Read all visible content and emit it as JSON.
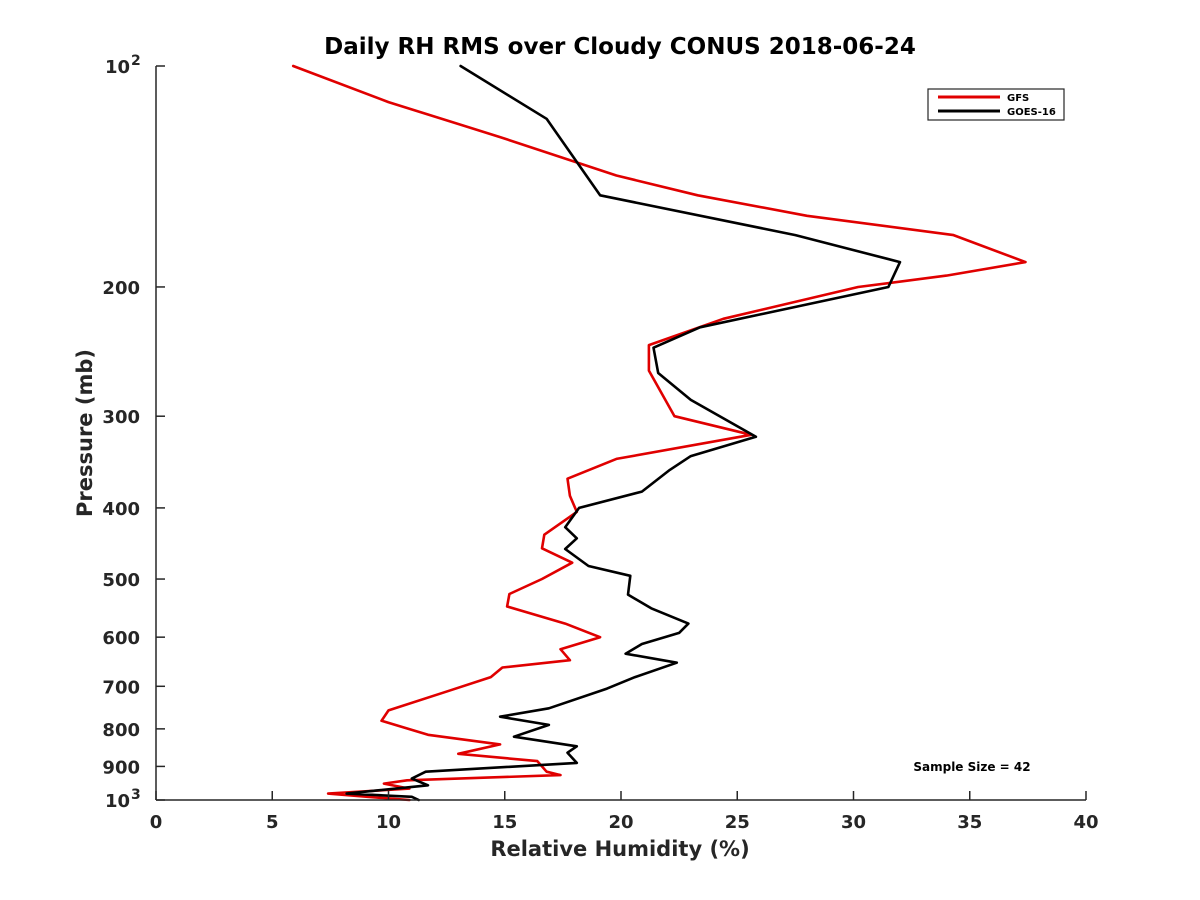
{
  "chart_data": {
    "type": "line",
    "title": "Daily RH RMS over Cloudy CONUS 2018-06-24",
    "xlabel": "Relative Humidity (%)",
    "ylabel": "Pressure (mb)",
    "xlim": [
      0,
      40
    ],
    "ylim": [
      100,
      1000
    ],
    "y_scale": "log",
    "y_reversed": true,
    "x_ticks": [
      0,
      5,
      10,
      15,
      20,
      25,
      30,
      35,
      40
    ],
    "x_tick_labels": [
      "0",
      "5",
      "10",
      "15",
      "20",
      "25",
      "30",
      "35",
      "40"
    ],
    "y_ticks": [
      100,
      200,
      300,
      400,
      500,
      600,
      700,
      800,
      900,
      1000
    ],
    "y_tick_labels": [
      {
        "base": "10",
        "exp": "2"
      },
      {
        "base": "200",
        "exp": ""
      },
      {
        "base": "300",
        "exp": ""
      },
      {
        "base": "400",
        "exp": ""
      },
      {
        "base": "500",
        "exp": ""
      },
      {
        "base": "600",
        "exp": ""
      },
      {
        "base": "700",
        "exp": ""
      },
      {
        "base": "800",
        "exp": ""
      },
      {
        "base": "900",
        "exp": ""
      },
      {
        "base": "10",
        "exp": "3"
      }
    ],
    "grid": false,
    "legend_position": "top-right",
    "annotation": "Sample Size = 42",
    "series": [
      {
        "name": "GFS",
        "color": "#e00000",
        "points": [
          [
            5.9,
            100
          ],
          [
            10,
            112
          ],
          [
            14.8,
            125
          ],
          [
            19.8,
            141
          ],
          [
            23.3,
            150
          ],
          [
            28,
            160
          ],
          [
            34.3,
            170
          ],
          [
            37.4,
            185
          ],
          [
            34,
            193
          ],
          [
            30.2,
            200
          ],
          [
            24.4,
            221
          ],
          [
            21.2,
            240
          ],
          [
            21.2,
            260
          ],
          [
            22.3,
            300
          ],
          [
            25.6,
            318
          ],
          [
            19.8,
            343
          ],
          [
            17.7,
            365
          ],
          [
            17.8,
            385
          ],
          [
            18.1,
            405
          ],
          [
            16.7,
            435
          ],
          [
            16.6,
            454
          ],
          [
            17.9,
            475
          ],
          [
            16.6,
            500
          ],
          [
            15.2,
            524
          ],
          [
            15.1,
            545
          ],
          [
            17.6,
            575
          ],
          [
            19.1,
            600
          ],
          [
            17.4,
            623
          ],
          [
            17.8,
            645
          ],
          [
            14.9,
            660
          ],
          [
            14.4,
            680
          ],
          [
            12.6,
            710
          ],
          [
            10,
            755
          ],
          [
            9.7,
            780
          ],
          [
            11.7,
            815
          ],
          [
            14.8,
            840
          ],
          [
            13,
            865
          ],
          [
            16.4,
            885
          ],
          [
            16.8,
            915
          ],
          [
            17.4,
            925
          ],
          [
            10.8,
            940
          ],
          [
            9.8,
            950
          ],
          [
            10.9,
            965
          ],
          [
            7.4,
            980
          ],
          [
            9.1,
            990
          ],
          [
            10.9,
            1000
          ]
        ]
      },
      {
        "name": "GOES-16",
        "color": "#000000",
        "points": [
          [
            13.1,
            100
          ],
          [
            16.8,
            118
          ],
          [
            19.1,
            150
          ],
          [
            27.5,
            170
          ],
          [
            32,
            185
          ],
          [
            31.5,
            200
          ],
          [
            23.4,
            227
          ],
          [
            21.4,
            242
          ],
          [
            21.6,
            262
          ],
          [
            23,
            285
          ],
          [
            25.8,
            320
          ],
          [
            23,
            340
          ],
          [
            22.1,
            355
          ],
          [
            20.9,
            380
          ],
          [
            18.2,
            400
          ],
          [
            17.6,
            425
          ],
          [
            18.1,
            440
          ],
          [
            17.6,
            455
          ],
          [
            18.6,
            480
          ],
          [
            20.4,
            495
          ],
          [
            20.3,
            525
          ],
          [
            21.3,
            548
          ],
          [
            22.9,
            575
          ],
          [
            22.5,
            592
          ],
          [
            20.9,
            613
          ],
          [
            20.2,
            632
          ],
          [
            22.4,
            650
          ],
          [
            20.6,
            680
          ],
          [
            19.4,
            705
          ],
          [
            16.9,
            750
          ],
          [
            14.8,
            770
          ],
          [
            16.9,
            790
          ],
          [
            15.4,
            820
          ],
          [
            18.1,
            845
          ],
          [
            17.7,
            862
          ],
          [
            18.1,
            890
          ],
          [
            11.6,
            915
          ],
          [
            11,
            935
          ],
          [
            11.7,
            955
          ],
          [
            8.2,
            980
          ],
          [
            11,
            990
          ],
          [
            11.3,
            1000
          ]
        ]
      }
    ]
  }
}
